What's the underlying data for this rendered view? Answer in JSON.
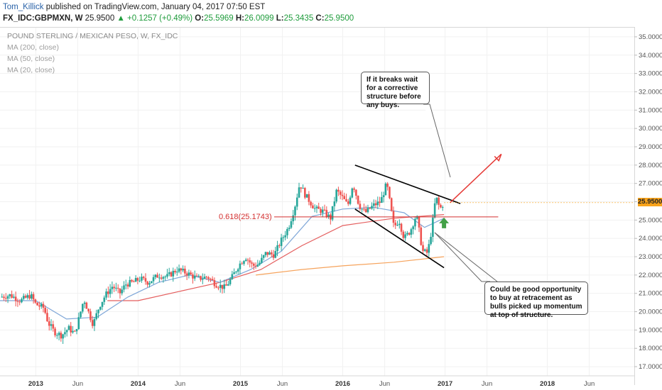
{
  "header": {
    "author": "Tom_Killick",
    "published": "published on TradingView.com, January 04, 2017 07:50 EST",
    "symbol": "FX_IDC:GBPMXN, W",
    "last": "25.9500",
    "change": "▲ +0.1257 (+0.49%)",
    "o_label": "O:",
    "o_value": "25.5969",
    "h_label": "H:",
    "h_value": "26.0099",
    "l_label": "L:",
    "l_value": "25.3435",
    "c_label": "C:",
    "c_value": "25.9500"
  },
  "legend": {
    "title": "POUND STERLING / MEXICAN PESO, W, FX_IDC",
    "ma200": "MA (200, close)",
    "ma50": "MA (50, close)",
    "ma20": "MA (20, close)"
  },
  "annotations": {
    "note_top": "If it breaks wait for a corrective structure before any buys.",
    "note_bottom": "Could be good opportunity to buy at retracement as bulls picked up momentum at top of structure.",
    "fib_label": "0.618(25.1743)",
    "price_tag": "25.9500"
  },
  "colors": {
    "up": "#26a69a",
    "down": "#ef5350",
    "ma200": "#f6a35c",
    "ma50": "#e45d5d",
    "ma20": "#7fa7d8",
    "fib": "#d32f2f",
    "arrow_up": "#e53935",
    "arrow_green": "#43a047",
    "price_tag": "#f9a31b"
  },
  "chart_data": {
    "type": "candlestick",
    "title": "POUND STERLING / MEXICAN PESO, W, FX_IDC",
    "ylim": [
      16.5,
      35.5
    ],
    "y_ticks": [
      "17.0000",
      "18.0000",
      "19.0000",
      "20.0000",
      "21.0000",
      "22.0000",
      "23.0000",
      "24.0000",
      "25.0000",
      "26.0000",
      "27.0000",
      "28.0000",
      "29.0000",
      "30.0000",
      "31.0000",
      "32.0000",
      "33.0000",
      "34.0000",
      "35.0000"
    ],
    "x_ticks": [
      {
        "label": "2013",
        "t": 2013.0,
        "major": true
      },
      {
        "label": "Jun",
        "t": 2013.41
      },
      {
        "label": "2014",
        "t": 2014.0,
        "major": true
      },
      {
        "label": "Jun",
        "t": 2014.41
      },
      {
        "label": "2015",
        "t": 2015.0,
        "major": true
      },
      {
        "label": "Jun",
        "t": 2015.41
      },
      {
        "label": "2016",
        "t": 2016.0,
        "major": true
      },
      {
        "label": "Jun",
        "t": 2016.41
      },
      {
        "label": "2017",
        "t": 2017.0,
        "major": true
      },
      {
        "label": "Jun",
        "t": 2017.41
      },
      {
        "label": "2018",
        "t": 2018.0,
        "major": true
      },
      {
        "label": "Jun",
        "t": 2018.41
      }
    ],
    "xlim": [
      2012.65,
      2018.85
    ],
    "close_path": [
      [
        2012.65,
        20.8
      ],
      [
        2012.75,
        20.9
      ],
      [
        2012.85,
        20.6
      ],
      [
        2012.95,
        20.9
      ],
      [
        2013.0,
        20.4
      ],
      [
        2013.08,
        20.2
      ],
      [
        2013.12,
        19.4
      ],
      [
        2013.18,
        18.9
      ],
      [
        2013.25,
        18.7
      ],
      [
        2013.32,
        19.1
      ],
      [
        2013.38,
        18.8
      ],
      [
        2013.42,
        19.6
      ],
      [
        2013.47,
        20.7
      ],
      [
        2013.52,
        19.9
      ],
      [
        2013.56,
        19.3
      ],
      [
        2013.62,
        20.3
      ],
      [
        2013.68,
        20.9
      ],
      [
        2013.75,
        21.4
      ],
      [
        2013.82,
        21.0
      ],
      [
        2013.88,
        21.5
      ],
      [
        2013.95,
        21.6
      ],
      [
        2014.02,
        21.8
      ],
      [
        2014.1,
        21.6
      ],
      [
        2014.2,
        22.0
      ],
      [
        2014.28,
        21.9
      ],
      [
        2014.38,
        22.3
      ],
      [
        2014.48,
        22.1
      ],
      [
        2014.58,
        21.8
      ],
      [
        2014.68,
        21.9
      ],
      [
        2014.76,
        21.5
      ],
      [
        2014.85,
        21.3
      ],
      [
        2014.92,
        21.9
      ],
      [
        2014.98,
        22.5
      ],
      [
        2015.05,
        23.0
      ],
      [
        2015.12,
        22.5
      ],
      [
        2015.18,
        22.6
      ],
      [
        2015.25,
        23.2
      ],
      [
        2015.33,
        23.1
      ],
      [
        2015.4,
        23.9
      ],
      [
        2015.47,
        24.6
      ],
      [
        2015.53,
        25.7
      ],
      [
        2015.58,
        27.0
      ],
      [
        2015.63,
        26.4
      ],
      [
        2015.68,
        26.0
      ],
      [
        2015.73,
        25.6
      ],
      [
        2015.8,
        25.5
      ],
      [
        2015.88,
        25.1
      ],
      [
        2015.94,
        26.6
      ],
      [
        2016.0,
        26.2
      ],
      [
        2016.05,
        25.8
      ],
      [
        2016.1,
        27.0
      ],
      [
        2016.16,
        25.8
      ],
      [
        2016.22,
        25.4
      ],
      [
        2016.3,
        25.8
      ],
      [
        2016.37,
        26.0
      ],
      [
        2016.43,
        27.0
      ],
      [
        2016.5,
        24.6
      ],
      [
        2016.55,
        25.0
      ],
      [
        2016.6,
        24.0
      ],
      [
        2016.66,
        24.4
      ],
      [
        2016.72,
        25.3
      ],
      [
        2016.78,
        23.3
      ],
      [
        2016.83,
        23.2
      ],
      [
        2016.87,
        24.5
      ],
      [
        2016.91,
        26.3
      ],
      [
        2016.95,
        25.6
      ],
      [
        2016.99,
        25.95
      ]
    ],
    "series": [
      {
        "name": "MA (200, close)",
        "points": [
          [
            2015.15,
            22.0
          ],
          [
            2015.6,
            22.3
          ],
          [
            2016.0,
            22.5
          ],
          [
            2016.5,
            22.7
          ],
          [
            2016.99,
            23.0
          ]
        ]
      },
      {
        "name": "MA (50, close)",
        "points": [
          [
            2013.7,
            20.6
          ],
          [
            2014.0,
            20.6
          ],
          [
            2014.4,
            21.1
          ],
          [
            2014.8,
            21.6
          ],
          [
            2015.2,
            22.3
          ],
          [
            2015.6,
            23.6
          ],
          [
            2016.0,
            24.7
          ],
          [
            2016.5,
            25.1
          ],
          [
            2016.99,
            25.3
          ]
        ]
      },
      {
        "name": "MA (20, close)",
        "points": [
          [
            2012.65,
            20.6
          ],
          [
            2013.0,
            20.6
          ],
          [
            2013.3,
            19.6
          ],
          [
            2013.6,
            19.7
          ],
          [
            2013.9,
            20.8
          ],
          [
            2014.2,
            21.6
          ],
          [
            2014.5,
            22.0
          ],
          [
            2014.8,
            21.6
          ],
          [
            2015.1,
            22.3
          ],
          [
            2015.4,
            23.3
          ],
          [
            2015.7,
            25.2
          ],
          [
            2016.0,
            25.6
          ],
          [
            2016.3,
            25.7
          ],
          [
            2016.6,
            25.4
          ],
          [
            2016.8,
            24.6
          ],
          [
            2016.99,
            25.1
          ]
        ]
      }
    ],
    "fib_level": {
      "label": "0.618(25.1743)",
      "value": 25.1743
    },
    "channel_upper": [
      [
        2016.12,
        28.0
      ],
      [
        2017.15,
        25.9
      ]
    ],
    "channel_lower": [
      [
        2016.12,
        25.6
      ],
      [
        2016.99,
        22.4
      ]
    ],
    "projection_arrow": [
      [
        2017.05,
        25.95
      ],
      [
        2017.55,
        28.6
      ]
    ],
    "last_price": 25.95
  }
}
